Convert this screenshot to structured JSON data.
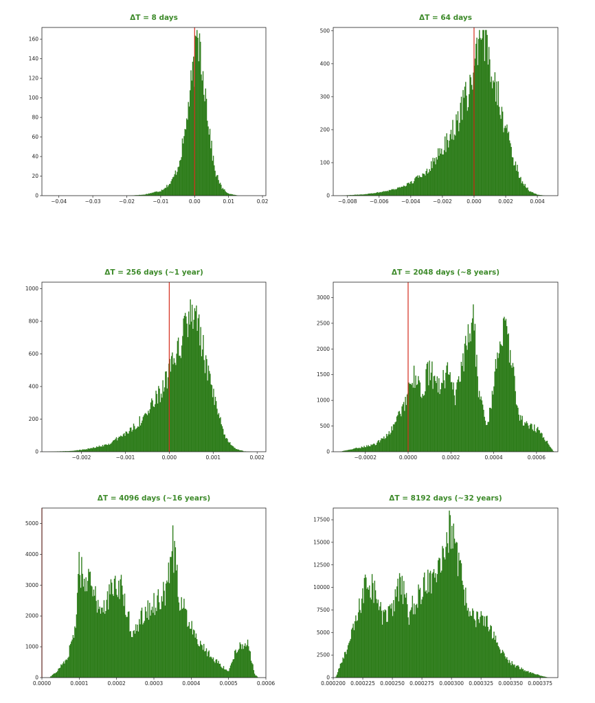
{
  "colors": {
    "bars": "#2e7d1b",
    "reference_line": "#d42a1a",
    "title": "#3d8a2a"
  },
  "chart_data": [
    {
      "type": "bar",
      "title": "ΔT = 8 days",
      "xlim": [
        -0.045,
        0.021
      ],
      "ylim": [
        0,
        172
      ],
      "xticks": [
        -0.04,
        -0.03,
        -0.02,
        -0.01,
        0.0,
        0.01,
        0.02
      ],
      "xtick_labels": [
        "−0.04",
        "−0.03",
        "−0.02",
        "−0.01",
        "0.00",
        "0.01",
        "0.02"
      ],
      "yticks": [
        0,
        20,
        40,
        60,
        80,
        100,
        120,
        140,
        160
      ],
      "ytick_labels": [
        "0",
        "20",
        "40",
        "60",
        "80",
        "100",
        "120",
        "140",
        "160"
      ],
      "reference_line_x": 0.0,
      "distribution": [
        {
          "x": -0.02,
          "y": 0
        },
        {
          "x": -0.015,
          "y": 1
        },
        {
          "x": -0.01,
          "y": 5
        },
        {
          "x": -0.007,
          "y": 13
        },
        {
          "x": -0.005,
          "y": 28
        },
        {
          "x": -0.003,
          "y": 60
        },
        {
          "x": -0.002,
          "y": 88
        },
        {
          "x": -0.001,
          "y": 112
        },
        {
          "x": 0.0,
          "y": 135
        },
        {
          "x": 0.001,
          "y": 160
        },
        {
          "x": 0.0015,
          "y": 157
        },
        {
          "x": 0.002,
          "y": 142
        },
        {
          "x": 0.003,
          "y": 112
        },
        {
          "x": 0.004,
          "y": 78
        },
        {
          "x": 0.005,
          "y": 48
        },
        {
          "x": 0.006,
          "y": 25
        },
        {
          "x": 0.008,
          "y": 8
        },
        {
          "x": 0.01,
          "y": 2
        },
        {
          "x": 0.013,
          "y": 0
        }
      ]
    },
    {
      "type": "bar",
      "title": "ΔT = 64 days",
      "xlim": [
        -0.0089,
        0.0053
      ],
      "ylim": [
        0,
        510
      ],
      "xticks": [
        -0.008,
        -0.006,
        -0.004,
        -0.002,
        0.0,
        0.002,
        0.004
      ],
      "xtick_labels": [
        "−0.008",
        "−0.006",
        "−0.004",
        "−0.002",
        "0.000",
        "0.002",
        "0.004"
      ],
      "yticks": [
        0,
        100,
        200,
        300,
        400,
        500
      ],
      "ytick_labels": [
        "0",
        "100",
        "200",
        "300",
        "400",
        "500"
      ],
      "reference_line_x": 0.0,
      "distribution": [
        {
          "x": -0.0085,
          "y": 0
        },
        {
          "x": -0.007,
          "y": 4
        },
        {
          "x": -0.006,
          "y": 10
        },
        {
          "x": -0.005,
          "y": 20
        },
        {
          "x": -0.004,
          "y": 38
        },
        {
          "x": -0.003,
          "y": 75
        },
        {
          "x": -0.002,
          "y": 140
        },
        {
          "x": -0.001,
          "y": 230
        },
        {
          "x": -0.0005,
          "y": 300
        },
        {
          "x": 0.0,
          "y": 370
        },
        {
          "x": 0.0003,
          "y": 440
        },
        {
          "x": 0.0006,
          "y": 470
        },
        {
          "x": 0.001,
          "y": 420
        },
        {
          "x": 0.0015,
          "y": 320
        },
        {
          "x": 0.002,
          "y": 200
        },
        {
          "x": 0.0025,
          "y": 110
        },
        {
          "x": 0.003,
          "y": 45
        },
        {
          "x": 0.0035,
          "y": 15
        },
        {
          "x": 0.004,
          "y": 3
        },
        {
          "x": 0.0045,
          "y": 0
        }
      ]
    },
    {
      "type": "bar",
      "title": "ΔT = 256 days (~1 year)",
      "xlim": [
        -0.0029,
        0.0022
      ],
      "ylim": [
        0,
        1040
      ],
      "xticks": [
        -0.002,
        -0.001,
        0.0,
        0.001,
        0.002
      ],
      "xtick_labels": [
        "−0.002",
        "−0.001",
        "0.000",
        "0.001",
        "0.002"
      ],
      "yticks": [
        0,
        200,
        400,
        600,
        800,
        1000
      ],
      "ytick_labels": [
        "0",
        "200",
        "400",
        "600",
        "800",
        "1000"
      ],
      "reference_line_x": 0.0,
      "distribution": [
        {
          "x": -0.0028,
          "y": 0
        },
        {
          "x": -0.0022,
          "y": 5
        },
        {
          "x": -0.0018,
          "y": 20
        },
        {
          "x": -0.0014,
          "y": 45
        },
        {
          "x": -0.001,
          "y": 110
        },
        {
          "x": -0.0007,
          "y": 180
        },
        {
          "x": -0.0005,
          "y": 240
        },
        {
          "x": -0.0003,
          "y": 320
        },
        {
          "x": -0.0001,
          "y": 420
        },
        {
          "x": 0.0001,
          "y": 540
        },
        {
          "x": 0.0003,
          "y": 700
        },
        {
          "x": 0.0005,
          "y": 860
        },
        {
          "x": 0.0006,
          "y": 880
        },
        {
          "x": 0.0007,
          "y": 700
        },
        {
          "x": 0.0009,
          "y": 460
        },
        {
          "x": 0.0011,
          "y": 230
        },
        {
          "x": 0.0013,
          "y": 80
        },
        {
          "x": 0.0015,
          "y": 20
        },
        {
          "x": 0.0017,
          "y": 3
        },
        {
          "x": 0.0019,
          "y": 0
        }
      ]
    },
    {
      "type": "bar",
      "title": "ΔT = 2048 days (~8 years)",
      "xlim": [
        -0.00035,
        0.0007
      ],
      "ylim": [
        0,
        3300
      ],
      "xticks": [
        -0.0002,
        0.0,
        0.0002,
        0.0004,
        0.0006
      ],
      "xtick_labels": [
        "−0.0002",
        "0.0000",
        "0.0002",
        "0.0004",
        "0.0006"
      ],
      "yticks": [
        0,
        500,
        1000,
        1500,
        2000,
        2500,
        3000
      ],
      "ytick_labels": [
        "0",
        "500",
        "1000",
        "1500",
        "2000",
        "2500",
        "3000"
      ],
      "reference_line_x": 0.0,
      "distribution": [
        {
          "x": -0.00032,
          "y": 0
        },
        {
          "x": -0.00025,
          "y": 60
        },
        {
          "x": -0.00015,
          "y": 150
        },
        {
          "x": -8e-05,
          "y": 400
        },
        {
          "x": -2e-05,
          "y": 900
        },
        {
          "x": 2e-05,
          "y": 1500
        },
        {
          "x": 6e-05,
          "y": 1150
        },
        {
          "x": 0.0001,
          "y": 1600
        },
        {
          "x": 0.00014,
          "y": 1250
        },
        {
          "x": 0.00018,
          "y": 1550
        },
        {
          "x": 0.00022,
          "y": 1050
        },
        {
          "x": 0.00026,
          "y": 1700
        },
        {
          "x": 0.0003,
          "y": 2800
        },
        {
          "x": 0.00033,
          "y": 1200
        },
        {
          "x": 0.00037,
          "y": 450
        },
        {
          "x": 0.0004,
          "y": 1300
        },
        {
          "x": 0.00044,
          "y": 2500
        },
        {
          "x": 0.00048,
          "y": 1800
        },
        {
          "x": 0.00052,
          "y": 700
        },
        {
          "x": 0.00056,
          "y": 500
        },
        {
          "x": 0.0006,
          "y": 450
        },
        {
          "x": 0.00064,
          "y": 250
        },
        {
          "x": 0.00068,
          "y": 0
        }
      ]
    },
    {
      "type": "bar",
      "title": "ΔT = 4096 days (~16 years)",
      "xlim": [
        0.0,
        0.0006
      ],
      "ylim": [
        0,
        5500
      ],
      "xticks": [
        0.0,
        0.0001,
        0.0002,
        0.0003,
        0.0004,
        0.0005,
        0.0006
      ],
      "xtick_labels": [
        "0.0000",
        "0.0001",
        "0.0002",
        "0.0003",
        "0.0004",
        "0.0005",
        "0.0006"
      ],
      "yticks": [
        0,
        1000,
        2000,
        3000,
        4000,
        5000
      ],
      "ytick_labels": [
        "0",
        "1000",
        "2000",
        "3000",
        "4000",
        "5000"
      ],
      "reference_line_x": 0.0,
      "distribution": [
        {
          "x": 2e-05,
          "y": 0
        },
        {
          "x": 4e-05,
          "y": 200
        },
        {
          "x": 7e-05,
          "y": 700
        },
        {
          "x": 9e-05,
          "y": 1700
        },
        {
          "x": 0.0001,
          "y": 3600
        },
        {
          "x": 0.00012,
          "y": 3200
        },
        {
          "x": 0.00014,
          "y": 2700
        },
        {
          "x": 0.00016,
          "y": 2200
        },
        {
          "x": 0.00018,
          "y": 2700
        },
        {
          "x": 0.00021,
          "y": 3000
        },
        {
          "x": 0.00024,
          "y": 1500
        },
        {
          "x": 0.00027,
          "y": 2000
        },
        {
          "x": 0.0003,
          "y": 2400
        },
        {
          "x": 0.00033,
          "y": 2700
        },
        {
          "x": 0.00035,
          "y": 4300
        },
        {
          "x": 0.00037,
          "y": 2500
        },
        {
          "x": 0.0004,
          "y": 1700
        },
        {
          "x": 0.00043,
          "y": 1000
        },
        {
          "x": 0.00047,
          "y": 500
        },
        {
          "x": 0.0005,
          "y": 200
        },
        {
          "x": 0.00052,
          "y": 900
        },
        {
          "x": 0.00055,
          "y": 1200
        },
        {
          "x": 0.00057,
          "y": 100
        },
        {
          "x": 0.00058,
          "y": 0
        }
      ]
    },
    {
      "type": "bar",
      "title": "ΔT = 8192 days (~32 years)",
      "xlim": [
        0.0002,
        0.00039
      ],
      "ylim": [
        0,
        18800
      ],
      "xticks": [
        0.0002,
        0.000225,
        0.00025,
        0.000275,
        0.0003,
        0.000325,
        0.00035,
        0.000375
      ],
      "xtick_labels": [
        "0.000200",
        "0.000225",
        "0.000250",
        "0.000275",
        "0.000300",
        "0.000325",
        "0.000350",
        "0.000375"
      ],
      "yticks": [
        0,
        2500,
        5000,
        7500,
        10000,
        12500,
        15000,
        17500
      ],
      "ytick_labels": [
        "0",
        "2500",
        "5000",
        "7500",
        "10000",
        "12500",
        "15000",
        "17500"
      ],
      "reference_line_x": null,
      "distribution": [
        {
          "x": 0.000202,
          "y": 0
        },
        {
          "x": 0.000208,
          "y": 2000
        },
        {
          "x": 0.000215,
          "y": 4500
        },
        {
          "x": 0.000222,
          "y": 7500
        },
        {
          "x": 0.000228,
          "y": 11000
        },
        {
          "x": 0.000234,
          "y": 10000
        },
        {
          "x": 0.000242,
          "y": 6500
        },
        {
          "x": 0.00025,
          "y": 7500
        },
        {
          "x": 0.000257,
          "y": 10500
        },
        {
          "x": 0.000264,
          "y": 7000
        },
        {
          "x": 0.000272,
          "y": 9000
        },
        {
          "x": 0.00028,
          "y": 10500
        },
        {
          "x": 0.000288,
          "y": 12500
        },
        {
          "x": 0.000295,
          "y": 15500
        },
        {
          "x": 0.0003,
          "y": 16500
        },
        {
          "x": 0.000306,
          "y": 12000
        },
        {
          "x": 0.000314,
          "y": 8000
        },
        {
          "x": 0.000322,
          "y": 6500
        },
        {
          "x": 0.00033,
          "y": 6000
        },
        {
          "x": 0.000338,
          "y": 4000
        },
        {
          "x": 0.000346,
          "y": 2000
        },
        {
          "x": 0.000356,
          "y": 1200
        },
        {
          "x": 0.000366,
          "y": 600
        },
        {
          "x": 0.000376,
          "y": 200
        },
        {
          "x": 0.000382,
          "y": 0
        }
      ]
    }
  ]
}
